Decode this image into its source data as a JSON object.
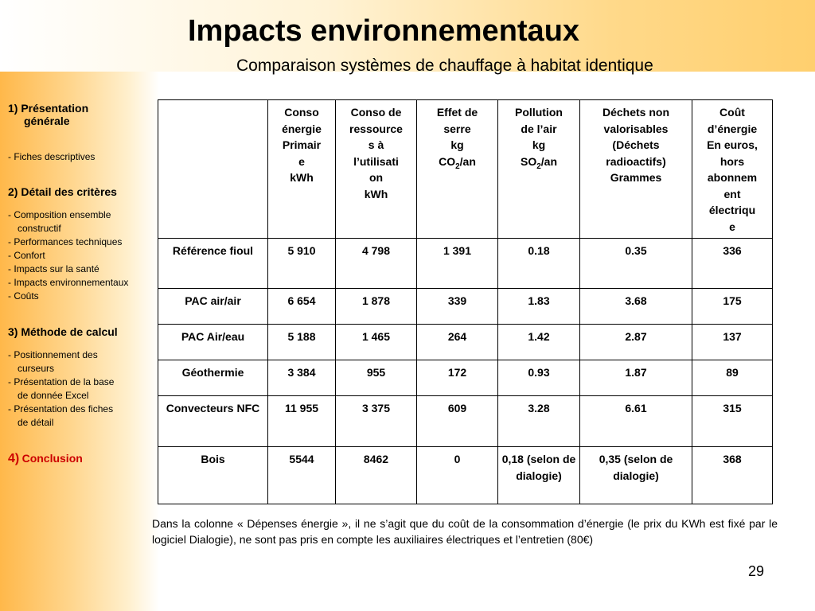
{
  "title": "Impacts environnementaux",
  "subtitle": "Comparaison systèmes de chauffage à habitat identique",
  "sidebar": {
    "sections": [
      {
        "label_1": "1) Présentation",
        "label_2": "générale",
        "items": [
          "- Fiches descriptives"
        ]
      },
      {
        "label": "2) Détail des critères",
        "items": [
          "- Composition ensemble",
          "constructif",
          "- Performances techniques",
          "- Confort",
          "- Impacts sur la santé",
          "- Impacts environnementaux",
          "- Coûts"
        ]
      },
      {
        "label": "3) Méthode de calcul",
        "items": [
          "- Positionnement des",
          "curseurs",
          "- Présentation de la base",
          "de donnée Excel",
          "- Présentation des fiches",
          "de détail"
        ]
      },
      {
        "num": "4)",
        "label": "Conclusion"
      }
    ]
  },
  "table": {
    "headers": [
      "",
      "Conso énergie Primaire kWh",
      "Conso de ressources à l’utilisation kWh",
      "Effet de serre kg CO2/an",
      "Pollution de l’air kg SO2/an",
      "Déchets non valorisables (Déchets radioactifs) Grammes",
      "Coût d’énergie En euros, hors abonnement électrique"
    ],
    "rows": [
      [
        "Référence fioul",
        "5 910",
        "4 798",
        "1 391",
        "0.18",
        "0.35",
        "336"
      ],
      [
        "PAC air/air",
        "6 654",
        "1 878",
        "339",
        "1.83",
        "3.68",
        "175"
      ],
      [
        "PAC Air/eau",
        "5 188",
        "1 465",
        "264",
        "1.42",
        "2.87",
        "137"
      ],
      [
        "Géothermie",
        "3 384",
        "955",
        "172",
        "0.93",
        "1.87",
        "89"
      ],
      [
        "Convecteurs NFC",
        "11 955",
        "3 375",
        "609",
        "3.28",
        "6.61",
        "315"
      ],
      [
        "Bois",
        "5544",
        "8462",
        "0",
        "0,18 (selon de dialogie)",
        "0,35 (selon de dialogie)",
        "368"
      ]
    ]
  },
  "note": "Dans la colonne « Dépenses énergie », il ne s’agit que du coût de la consommation d’énergie (le prix du KWh est fixé par le logiciel Dialogie), ne sont pas pris en compte les auxiliaires électriques et l’entretien (80€)",
  "page_number": "29",
  "colors": {
    "accent": "#ffb84a",
    "conclusion": "#cc0000"
  }
}
